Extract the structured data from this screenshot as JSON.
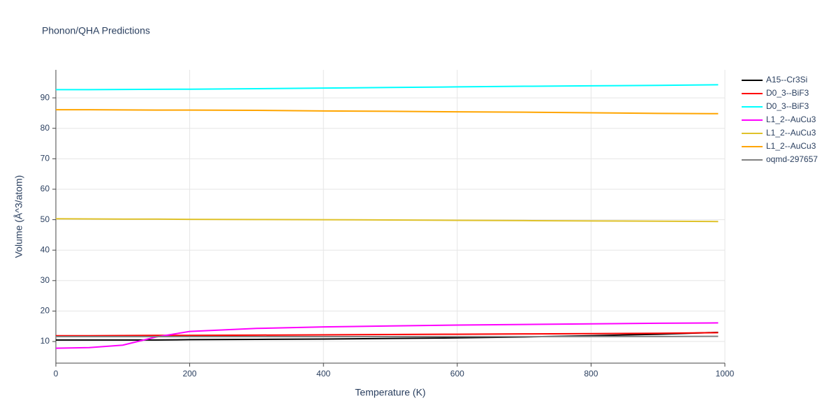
{
  "chart_data": {
    "type": "line",
    "title": "Phonon/QHA Predictions",
    "x_label": "Temperature (K)",
    "y_label": "Volume (Å^3/atom)",
    "x": [
      0,
      50,
      100,
      150,
      200,
      300,
      400,
      500,
      600,
      700,
      800,
      900,
      990
    ],
    "series": [
      {
        "name": "A15--Cr3Si",
        "color": "#000000",
        "values": [
          10.5,
          10.5,
          10.5,
          10.5,
          10.6,
          10.7,
          10.8,
          11.0,
          11.2,
          11.5,
          11.9,
          12.4,
          13.0
        ]
      },
      {
        "name": "D0_3--BiF3",
        "color": "#ff0000",
        "values": [
          11.9,
          11.9,
          11.95,
          12.0,
          12.0,
          12.1,
          12.2,
          12.3,
          12.4,
          12.5,
          12.6,
          12.7,
          12.9
        ]
      },
      {
        "name": "D0_3--BiF3",
        "color": "#00ffff",
        "values": [
          92.7,
          92.7,
          92.75,
          92.8,
          92.85,
          93.0,
          93.2,
          93.4,
          93.6,
          93.8,
          93.95,
          94.1,
          94.3
        ]
      },
      {
        "name": "L1_2--AuCu3",
        "color": "#ff00ff",
        "values": [
          7.8,
          8.0,
          8.8,
          11.5,
          13.3,
          14.3,
          14.8,
          15.1,
          15.4,
          15.6,
          15.8,
          16.0,
          16.1
        ]
      },
      {
        "name": "L1_2--AuCu3",
        "color": "#dfc22a",
        "values": [
          50.3,
          50.25,
          50.2,
          50.2,
          50.1,
          50.05,
          50.0,
          49.9,
          49.8,
          49.7,
          49.6,
          49.5,
          49.4
        ]
      },
      {
        "name": "L1_2--AuCu3",
        "color": "#ffa500",
        "values": [
          86.1,
          86.1,
          86.05,
          86.0,
          86.0,
          85.9,
          85.7,
          85.6,
          85.4,
          85.3,
          85.1,
          84.9,
          84.8
        ]
      },
      {
        "name": "oqmd-297657",
        "color": "#808080",
        "values": [
          11.6,
          11.6,
          11.6,
          11.6,
          11.6,
          11.6,
          11.6,
          11.6,
          11.6,
          11.6,
          11.65,
          11.65,
          11.7
        ]
      }
    ],
    "xlim": [
      0,
      1000
    ],
    "ylim": [
      2.9,
      99.2
    ],
    "xticks": [
      0,
      200,
      400,
      600,
      800,
      1000
    ],
    "yticks": [
      10,
      20,
      30,
      40,
      50,
      60,
      70,
      80,
      90
    ],
    "grid": true
  }
}
